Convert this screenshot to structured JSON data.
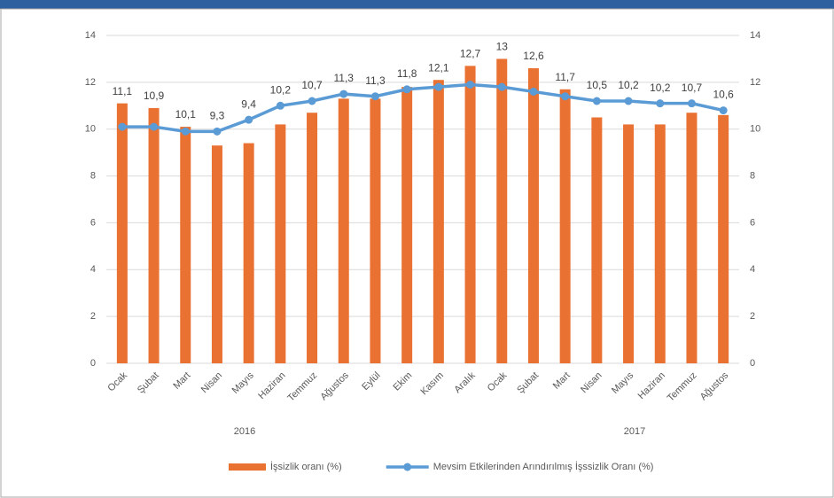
{
  "chart_data": {
    "type": "bar_line",
    "categories": [
      "Ocak",
      "Şubat",
      "Mart",
      "Nisan",
      "Mayıs",
      "Haziran",
      "Temmuz",
      "Ağustos",
      "Eylül",
      "Ekim",
      "Kasım",
      "Aralık",
      "Ocak",
      "Şubat",
      "Mart",
      "Nisan",
      "Mayıs",
      "Haziran",
      "Temmuz",
      "Ağustos"
    ],
    "groups": [
      "2016",
      "2017"
    ],
    "series": [
      {
        "name": "İşsizlik oranı (%)",
        "type": "bar",
        "color": "#e97132",
        "values": [
          11.1,
          10.9,
          10.1,
          9.3,
          9.4,
          10.2,
          10.7,
          11.3,
          11.3,
          11.8,
          12.1,
          12.7,
          13,
          12.6,
          11.7,
          10.5,
          10.2,
          10.2,
          10.7,
          10.6
        ],
        "value_labels": [
          "11,1",
          "10,9",
          "10,1",
          "9,3",
          "9,4",
          "10,2",
          "10,7",
          "11,3",
          "11,3",
          "11,8",
          "12,1",
          "12,7",
          "13",
          "12,6",
          "11,7",
          "10,5",
          "10,2",
          "10,2",
          "10,7",
          "10,6"
        ]
      },
      {
        "name": "Mevsim Etkilerinden Arındırılmış İşssizlik Oranı (%)",
        "type": "line",
        "color": "#5b9bd5",
        "axis": "y2",
        "values": [
          10.1,
          10.1,
          9.9,
          9.9,
          10.4,
          11.0,
          11.2,
          11.5,
          11.4,
          11.7,
          11.8,
          11.9,
          11.8,
          11.6,
          11.4,
          11.2,
          11.2,
          11.1,
          11.1,
          10.8
        ]
      }
    ],
    "ylim": [
      0,
      14
    ],
    "yticks": [
      0,
      2,
      4,
      6,
      8,
      10,
      12,
      14
    ],
    "y2lim": [
      0,
      14
    ],
    "y2ticks": [
      0,
      2,
      4,
      6,
      8,
      10,
      12,
      14
    ],
    "grid": true,
    "legend": "bottom"
  }
}
